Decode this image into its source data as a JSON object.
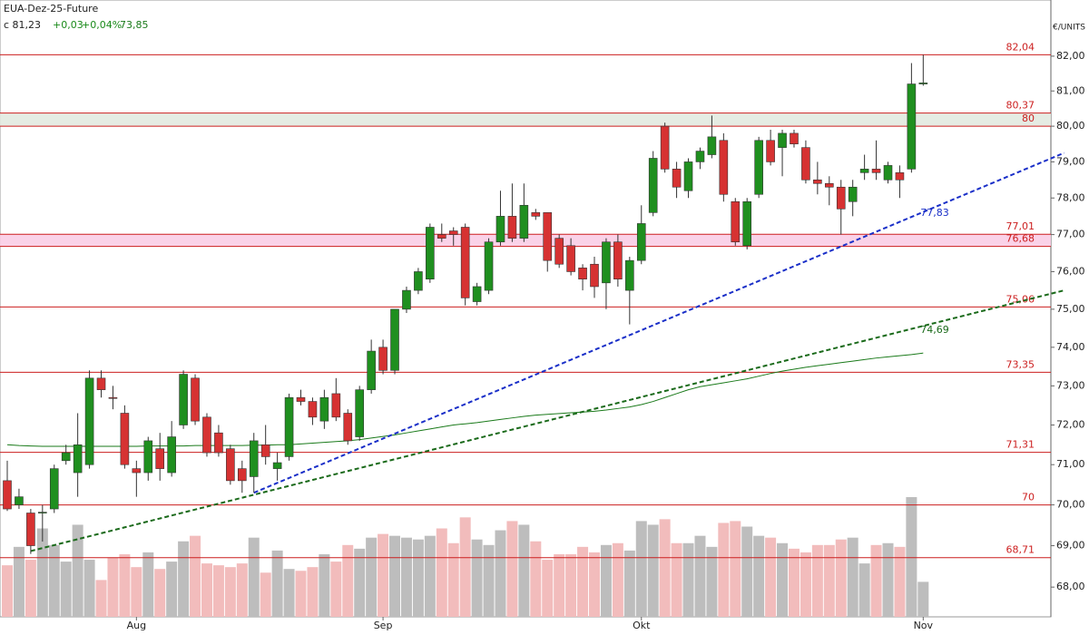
{
  "chart_data": {
    "type": "candlestick",
    "header": {
      "symbol": "EUA-Dez-25-Future",
      "close": "c 81,23",
      "change": "+0,03",
      "change_pct": "+0,04%",
      "ma": "73,85"
    },
    "unit": "€/UNITS",
    "log_scale": true,
    "ylim": [
      67.29,
      83.64
    ],
    "yticks": [
      {
        "value": 68,
        "label": "68,00"
      },
      {
        "value": 69,
        "label": "69,00"
      },
      {
        "value": 70,
        "label": "70,00"
      },
      {
        "value": 71,
        "label": "71,00"
      },
      {
        "value": 72,
        "label": "72,00"
      },
      {
        "value": 73,
        "label": "73,00"
      },
      {
        "value": 74,
        "label": "74,00"
      },
      {
        "value": 75,
        "label": "75,00"
      },
      {
        "value": 76,
        "label": "76,00"
      },
      {
        "value": 77,
        "label": "77,00"
      },
      {
        "value": 78,
        "label": "78,00"
      },
      {
        "value": 79,
        "label": "79,00"
      },
      {
        "value": 80,
        "label": "80,00"
      },
      {
        "value": 81,
        "label": "81,00"
      },
      {
        "value": 82,
        "label": "82,00"
      }
    ],
    "categories": [
      null,
      null,
      null,
      null,
      null,
      null,
      null,
      null,
      null,
      null,
      null,
      "Aug",
      null,
      null,
      null,
      null,
      null,
      null,
      null,
      null,
      null,
      null,
      null,
      null,
      null,
      null,
      null,
      null,
      null,
      null,
      null,
      null,
      "Sep",
      null,
      null,
      null,
      null,
      null,
      null,
      null,
      null,
      null,
      null,
      null,
      null,
      null,
      null,
      null,
      null,
      null,
      null,
      null,
      null,
      null,
      "Okt",
      null,
      null,
      null,
      null,
      null,
      null,
      null,
      null,
      null,
      null,
      null,
      null,
      null,
      null,
      null,
      null,
      null,
      null,
      null,
      null,
      null,
      null,
      null,
      "Nov"
    ],
    "up_color": "#1f8f1f",
    "down_color": "#d63232",
    "volume_up_color": "#bdbdbd",
    "volume_down_color": "#f2bcbc",
    "open": [
      70.6,
      70.0,
      69.8,
      69.8,
      69.9,
      71.1,
      70.8,
      71.0,
      73.2,
      72.7,
      72.3,
      70.9,
      70.8,
      71.4,
      70.8,
      72.0,
      73.2,
      72.2,
      71.8,
      71.4,
      70.9,
      70.7,
      71.5,
      70.9,
      71.2,
      72.7,
      72.6,
      72.1,
      72.8,
      72.3,
      71.7,
      72.9,
      74.0,
      73.4,
      75.0,
      75.5,
      75.8,
      77.0,
      77.1,
      77.2,
      75.2,
      75.5,
      76.8,
      77.5,
      76.9,
      77.6,
      77.6,
      76.9,
      76.7,
      76.1,
      76.2,
      75.7,
      76.8,
      75.5,
      76.3,
      77.6,
      80.0,
      78.8,
      78.2,
      79.0,
      79.2,
      79.6,
      77.9,
      76.7,
      78.1,
      79.6,
      79.4,
      79.8,
      79.4,
      78.5,
      78.4,
      78.3,
      77.9,
      78.7,
      78.8,
      78.5,
      78.7,
      78.8,
      81.2
    ],
    "high": [
      71.1,
      70.4,
      69.9,
      70.0,
      71.0,
      71.5,
      72.3,
      73.4,
      73.4,
      73.0,
      72.5,
      71.1,
      71.7,
      71.8,
      72.1,
      73.4,
      73.3,
      72.3,
      72.0,
      71.5,
      71.1,
      71.8,
      72.0,
      71.3,
      72.8,
      72.9,
      72.7,
      72.9,
      73.2,
      72.4,
      73.0,
      74.2,
      74.2,
      75.0,
      75.6,
      76.1,
      77.3,
      77.3,
      77.2,
      77.3,
      75.7,
      76.9,
      78.2,
      78.4,
      78.4,
      77.7,
      77.6,
      77.0,
      76.9,
      76.2,
      76.4,
      76.9,
      77.0,
      76.4,
      77.8,
      79.3,
      80.1,
      79.0,
      79.1,
      79.4,
      80.3,
      79.8,
      78.0,
      78.0,
      79.7,
      79.9,
      79.9,
      79.9,
      79.6,
      79.0,
      78.6,
      78.5,
      78.5,
      79.2,
      79.6,
      79.0,
      78.9,
      81.8,
      82.04
    ],
    "low": [
      69.85,
      69.9,
      68.8,
      69.1,
      69.8,
      71.0,
      70.2,
      70.9,
      72.7,
      72.4,
      70.9,
      70.2,
      70.6,
      70.6,
      70.7,
      71.9,
      72.0,
      71.2,
      71.2,
      70.5,
      70.3,
      70.3,
      71.0,
      70.6,
      71.1,
      72.5,
      72.0,
      71.9,
      72.1,
      71.5,
      71.6,
      72.8,
      73.3,
      73.3,
      74.9,
      75.4,
      75.7,
      76.8,
      76.7,
      75.1,
      75.1,
      75.4,
      76.7,
      76.8,
      76.8,
      77.4,
      76.0,
      76.1,
      75.9,
      75.5,
      75.3,
      75.0,
      75.6,
      74.6,
      76.2,
      77.5,
      78.7,
      78.0,
      78.0,
      78.8,
      79.1,
      77.9,
      76.7,
      76.6,
      78.0,
      78.9,
      78.6,
      79.4,
      78.4,
      78.1,
      77.8,
      77.0,
      77.5,
      78.5,
      78.5,
      78.4,
      78.0,
      78.7,
      81.15
    ],
    "close": [
      69.9,
      70.2,
      69.0,
      69.82,
      70.9,
      71.3,
      71.5,
      73.2,
      72.9,
      72.68,
      71.0,
      70.8,
      71.6,
      70.9,
      71.7,
      73.3,
      72.1,
      71.3,
      71.3,
      70.6,
      70.6,
      71.6,
      71.2,
      71.05,
      72.7,
      72.6,
      72.2,
      72.7,
      72.2,
      71.6,
      72.9,
      73.9,
      73.4,
      75.0,
      75.5,
      76.0,
      77.2,
      76.9,
      77.0,
      75.3,
      75.6,
      76.8,
      77.5,
      76.9,
      77.8,
      77.5,
      76.3,
      76.2,
      76.0,
      75.8,
      75.6,
      76.8,
      75.8,
      76.3,
      77.3,
      79.1,
      78.8,
      78.3,
      79.0,
      79.3,
      79.7,
      78.1,
      76.8,
      77.9,
      79.6,
      79.0,
      79.8,
      79.5,
      78.5,
      78.4,
      78.3,
      77.7,
      78.3,
      78.8,
      78.7,
      78.9,
      78.5,
      81.2,
      81.23
    ],
    "volume": [
      56,
      76,
      62,
      96,
      78,
      60,
      100,
      62,
      40,
      64,
      68,
      54,
      70,
      52,
      60,
      82,
      88,
      58,
      56,
      54,
      58,
      86,
      48,
      72,
      52,
      50,
      54,
      68,
      60,
      78,
      74,
      86,
      90,
      88,
      86,
      84,
      88,
      96,
      80,
      108,
      84,
      78,
      94,
      104,
      100,
      82,
      62,
      68,
      68,
      76,
      70,
      78,
      80,
      72,
      104,
      100,
      106,
      80,
      80,
      88,
      76,
      102,
      104,
      98,
      88,
      86,
      80,
      74,
      70,
      78,
      78,
      84,
      86,
      58,
      78,
      80,
      76,
      130,
      38
    ],
    "moving_average": {
      "color": "#1a7a1a",
      "values": [
        71.5,
        71.48,
        71.47,
        71.46,
        71.46,
        71.46,
        71.46,
        71.46,
        71.46,
        71.46,
        71.46,
        71.46,
        71.47,
        71.47,
        71.47,
        71.47,
        71.48,
        71.48,
        71.48,
        71.48,
        71.48,
        71.49,
        71.49,
        71.5,
        71.5,
        71.52,
        71.54,
        71.56,
        71.58,
        71.6,
        71.63,
        71.67,
        71.71,
        71.75,
        71.8,
        71.85,
        71.9,
        71.95,
        72.0,
        72.03,
        72.06,
        72.1,
        72.14,
        72.18,
        72.22,
        72.25,
        72.27,
        72.29,
        72.31,
        72.33,
        72.35,
        72.38,
        72.42,
        72.46,
        72.52,
        72.6,
        72.7,
        72.8,
        72.9,
        72.98,
        73.03,
        73.08,
        73.13,
        73.18,
        73.25,
        73.32,
        73.38,
        73.43,
        73.48,
        73.52,
        73.56,
        73.6,
        73.64,
        73.68,
        73.72,
        73.75,
        73.78,
        73.81,
        73.85
      ]
    },
    "levels_color": "#cc1f1f",
    "levels": [
      {
        "value": 82.04,
        "label": "82,04"
      },
      {
        "value": 80.37,
        "label": "80,37"
      },
      {
        "value": 80,
        "label": "80"
      },
      {
        "value": 77.01,
        "label": "77,01"
      },
      {
        "value": 76.68,
        "label": "76,68"
      },
      {
        "value": 75.06,
        "label": "75,06"
      },
      {
        "value": 73.35,
        "label": "73,35"
      },
      {
        "value": 71.31,
        "label": "71,31"
      },
      {
        "value": 70,
        "label": "70"
      },
      {
        "value": 68.71,
        "label": "68,71"
      }
    ],
    "zones": [
      {
        "from": 80,
        "to": 80.37,
        "color": "#e2eae0"
      },
      {
        "from": 76.68,
        "to": 77.01,
        "color": "#f9cde6"
      }
    ],
    "trendlines": [
      {
        "color": "#1a2fc8",
        "points": [
          [
            21,
            70.3
          ],
          [
            90,
            79.25
          ]
        ],
        "value": 77.83,
        "label": "77,83"
      },
      {
        "color": "#1a6a1a",
        "points": [
          [
            2,
            68.87
          ],
          [
            90,
            75.5
          ]
        ],
        "value": 74.69,
        "label": "74,69"
      }
    ]
  }
}
